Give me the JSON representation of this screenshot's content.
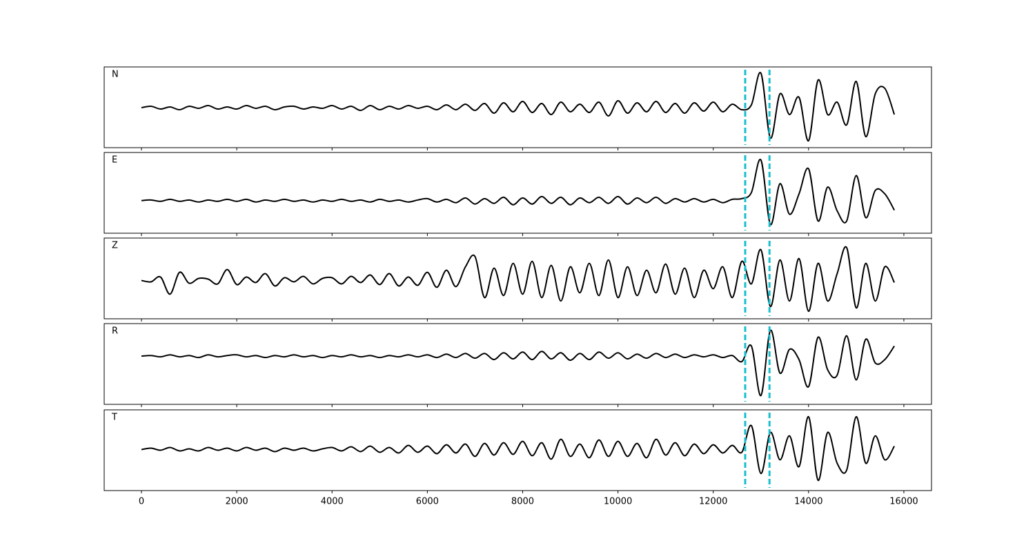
{
  "chart_data": [
    {
      "type": "line",
      "label": "N",
      "color": "#000000",
      "vline_color": "#17becf",
      "vlines": [
        12670,
        13180
      ],
      "x": [
        0,
        200,
        400,
        600,
        800,
        1000,
        1200,
        1400,
        1600,
        1800,
        2000,
        2200,
        2400,
        2600,
        2800,
        3000,
        3200,
        3400,
        3600,
        3800,
        4000,
        4200,
        4400,
        4600,
        4800,
        5000,
        5200,
        5400,
        5600,
        5800,
        6000,
        6200,
        6400,
        6600,
        6800,
        7000,
        7200,
        7400,
        7600,
        7800,
        8000,
        8200,
        8400,
        8600,
        8800,
        9000,
        9200,
        9400,
        9600,
        9800,
        10000,
        10200,
        10400,
        10600,
        10800,
        11000,
        11200,
        11400,
        11600,
        11800,
        12000,
        12200,
        12400,
        12600,
        12800,
        13000,
        13200,
        13400,
        13600,
        13800,
        14000,
        14200,
        14400,
        14600,
        14800,
        15000,
        15200,
        15400,
        15600,
        15800
      ],
      "values": [
        0,
        2,
        -2,
        1,
        -3,
        2,
        -1,
        3,
        -2,
        1,
        -2,
        3,
        -1,
        2,
        -3,
        1,
        2,
        -2,
        1,
        -1,
        3,
        -2,
        2,
        -4,
        3,
        -3,
        2,
        -2,
        3,
        -1,
        2,
        -3,
        4,
        -3,
        5,
        -4,
        6,
        -8,
        7,
        -6,
        9,
        -7,
        6,
        -10,
        8,
        -6,
        5,
        -7,
        8,
        -12,
        10,
        -8,
        7,
        -6,
        9,
        -7,
        6,
        -8,
        7,
        -5,
        8,
        -6,
        5,
        -3,
        4,
        50,
        -44,
        20,
        -10,
        15,
        -48,
        40,
        -10,
        8,
        -25,
        38,
        -42,
        20,
        28,
        -10
      ],
      "xlim": [
        -782,
        16580
      ],
      "ylim": [
        -58,
        59
      ],
      "xticks": [
        0,
        2000,
        4000,
        6000,
        8000,
        10000,
        12000,
        14000,
        16000
      ]
    },
    {
      "type": "line",
      "label": "E",
      "color": "#000000",
      "vline_color": "#17becf",
      "vlines": [
        12670,
        13180
      ],
      "x": [
        0,
        200,
        400,
        600,
        800,
        1000,
        1200,
        1400,
        1600,
        1800,
        2000,
        2200,
        2400,
        2600,
        2800,
        3000,
        3200,
        3400,
        3600,
        3800,
        4000,
        4200,
        4400,
        4600,
        4800,
        5000,
        5200,
        5400,
        5600,
        5800,
        6000,
        6200,
        6400,
        6600,
        6800,
        7000,
        7200,
        7400,
        7600,
        7800,
        8000,
        8200,
        8400,
        8600,
        8800,
        9000,
        9200,
        9400,
        9600,
        9800,
        10000,
        10200,
        10400,
        10600,
        10800,
        11000,
        11200,
        11400,
        11600,
        11800,
        12000,
        12200,
        12400,
        12600,
        12800,
        13000,
        13200,
        13400,
        13600,
        13800,
        14000,
        14200,
        14400,
        14600,
        14800,
        15000,
        15200,
        15400,
        15600,
        15800
      ],
      "values": [
        0,
        1,
        -1,
        2,
        -1,
        1,
        -2,
        1,
        -1,
        2,
        -1,
        2,
        -2,
        1,
        -1,
        2,
        -1,
        1,
        -2,
        1,
        -1,
        2,
        -1,
        1,
        -2,
        2,
        -1,
        1,
        -2,
        1,
        3,
        -2,
        2,
        -3,
        4,
        -5,
        3,
        -4,
        5,
        -6,
        4,
        -5,
        6,
        -4,
        5,
        -6,
        4,
        -3,
        5,
        -4,
        6,
        -5,
        4,
        -3,
        5,
        -4,
        3,
        -2,
        3,
        -2,
        2,
        -3,
        2,
        3,
        12,
        60,
        -35,
        25,
        -20,
        10,
        47,
        -30,
        20,
        -15,
        -30,
        37,
        -25,
        15,
        10,
        -14
      ],
      "xlim": [
        -782,
        16580
      ],
      "ylim": [
        -48,
        71
      ],
      "xticks": [
        0,
        2000,
        4000,
        6000,
        8000,
        10000,
        12000,
        14000,
        16000
      ]
    },
    {
      "type": "line",
      "label": "Z",
      "color": "#000000",
      "vline_color": "#17becf",
      "vlines": [
        12670,
        13180
      ],
      "x": [
        0,
        200,
        400,
        600,
        800,
        1000,
        1200,
        1400,
        1600,
        1800,
        2000,
        2200,
        2400,
        2600,
        2800,
        3000,
        3200,
        3400,
        3600,
        3800,
        4000,
        4200,
        4400,
        4600,
        4800,
        5000,
        5200,
        5400,
        5600,
        5800,
        6000,
        6200,
        6400,
        6600,
        6800,
        7000,
        7200,
        7400,
        7600,
        7800,
        8000,
        8200,
        8400,
        8600,
        8800,
        9000,
        9200,
        9400,
        9600,
        9800,
        10000,
        10200,
        10400,
        10600,
        10800,
        11000,
        11200,
        11400,
        11600,
        11800,
        12000,
        12200,
        12400,
        12600,
        12800,
        13000,
        13200,
        13400,
        13600,
        13800,
        14000,
        14200,
        14400,
        14600,
        14800,
        15000,
        15200,
        15400,
        15600,
        15800
      ],
      "values": [
        0,
        -2,
        5,
        -20,
        12,
        -4,
        3,
        2,
        -5,
        16,
        -6,
        5,
        -3,
        10,
        -8,
        4,
        -2,
        6,
        -5,
        3,
        4,
        -5,
        6,
        -3,
        8,
        -6,
        10,
        -8,
        5,
        -7,
        12,
        -10,
        15,
        -9,
        20,
        35,
        -25,
        18,
        -22,
        25,
        -20,
        28,
        -25,
        22,
        -30,
        20,
        -18,
        25,
        -22,
        30,
        -25,
        20,
        -22,
        15,
        -18,
        24,
        -20,
        18,
        -25,
        15,
        -12,
        20,
        -25,
        28,
        -5,
        45,
        -38,
        30,
        -30,
        32,
        -45,
        25,
        -30,
        10,
        48,
        -40,
        25,
        -30,
        20,
        -3
      ],
      "xlim": [
        -782,
        16580
      ],
      "ylim": [
        -56,
        62
      ],
      "xticks": [
        0,
        2000,
        4000,
        6000,
        8000,
        10000,
        12000,
        14000,
        16000
      ]
    },
    {
      "type": "line",
      "label": "R",
      "color": "#000000",
      "vline_color": "#17becf",
      "vlines": [
        12670,
        13180
      ],
      "x": [
        0,
        200,
        400,
        600,
        800,
        1000,
        1200,
        1400,
        1600,
        1800,
        2000,
        2200,
        2400,
        2600,
        2800,
        3000,
        3200,
        3400,
        3600,
        3800,
        4000,
        4200,
        4400,
        4600,
        4800,
        5000,
        5200,
        5400,
        5600,
        5800,
        6000,
        6200,
        6400,
        6600,
        6800,
        7000,
        7200,
        7400,
        7600,
        7800,
        8000,
        8200,
        8400,
        8600,
        8800,
        9000,
        9200,
        9400,
        9600,
        9800,
        10000,
        10200,
        10400,
        10600,
        10800,
        11000,
        11200,
        11400,
        11600,
        11800,
        12000,
        12200,
        12400,
        12600,
        12800,
        13000,
        13200,
        13400,
        13600,
        13800,
        14000,
        14200,
        14400,
        14600,
        14800,
        15000,
        15200,
        15400,
        15600,
        15800
      ],
      "values": [
        0,
        1,
        -1,
        2,
        -1,
        1,
        -2,
        2,
        -1,
        1,
        2,
        -1,
        1,
        -2,
        1,
        -1,
        2,
        -1,
        1,
        -2,
        1,
        -1,
        2,
        -1,
        1,
        -2,
        1,
        -1,
        2,
        -1,
        2,
        -2,
        3,
        -2,
        4,
        -3,
        4,
        -5,
        5,
        -4,
        6,
        -5,
        7,
        -4,
        5,
        -6,
        4,
        -5,
        6,
        -3,
        5,
        -4,
        3,
        -3,
        4,
        -2,
        3,
        -2,
        2,
        -1,
        2,
        -2,
        1,
        -8,
        15,
        -58,
        38,
        -25,
        10,
        -5,
        -45,
        28,
        -20,
        -28,
        30,
        -35,
        25,
        -10,
        -5,
        15
      ],
      "xlim": [
        -782,
        16580
      ],
      "ylim": [
        -71,
        48
      ],
      "xticks": [
        0,
        2000,
        4000,
        6000,
        8000,
        10000,
        12000,
        14000,
        16000
      ]
    },
    {
      "type": "line",
      "label": "T",
      "color": "#000000",
      "vline_color": "#17becf",
      "vlines": [
        12670,
        13180
      ],
      "x": [
        0,
        200,
        400,
        600,
        800,
        1000,
        1200,
        1400,
        1600,
        1800,
        2000,
        2200,
        2400,
        2600,
        2800,
        3000,
        3200,
        3400,
        3600,
        3800,
        4000,
        4200,
        4400,
        4600,
        4800,
        5000,
        5200,
        5400,
        5600,
        5800,
        6000,
        6200,
        6400,
        6600,
        6800,
        7000,
        7200,
        7400,
        7600,
        7800,
        8000,
        8200,
        8400,
        8600,
        8800,
        9000,
        9200,
        9400,
        9600,
        9800,
        10000,
        10200,
        10400,
        10600,
        10800,
        11000,
        11200,
        11400,
        11600,
        11800,
        12000,
        12200,
        12400,
        12600,
        12800,
        13000,
        13200,
        13400,
        13600,
        13800,
        14000,
        14200,
        14400,
        14600,
        14800,
        15000,
        15200,
        15400,
        15600,
        15800
      ],
      "values": [
        0,
        2,
        -1,
        3,
        -2,
        1,
        -2,
        3,
        -1,
        2,
        -2,
        3,
        -1,
        2,
        -3,
        2,
        -1,
        2,
        -2,
        1,
        3,
        -2,
        4,
        -3,
        5,
        -4,
        3,
        -5,
        6,
        -4,
        5,
        -6,
        7,
        -5,
        8,
        -10,
        9,
        -8,
        10,
        -7,
        12,
        -9,
        10,
        -14,
        15,
        -10,
        8,
        -12,
        14,
        -10,
        12,
        -10,
        9,
        -12,
        15,
        -8,
        10,
        -9,
        8,
        -6,
        7,
        -5,
        6,
        -4,
        35,
        -35,
        25,
        -15,
        20,
        -25,
        48,
        -45,
        25,
        -20,
        -30,
        48,
        -20,
        20,
        -15,
        5
      ],
      "xlim": [
        -782,
        16580
      ],
      "ylim": [
        -60,
        58
      ],
      "xticks": [
        0,
        2000,
        4000,
        6000,
        8000,
        10000,
        12000,
        14000,
        16000
      ]
    }
  ]
}
